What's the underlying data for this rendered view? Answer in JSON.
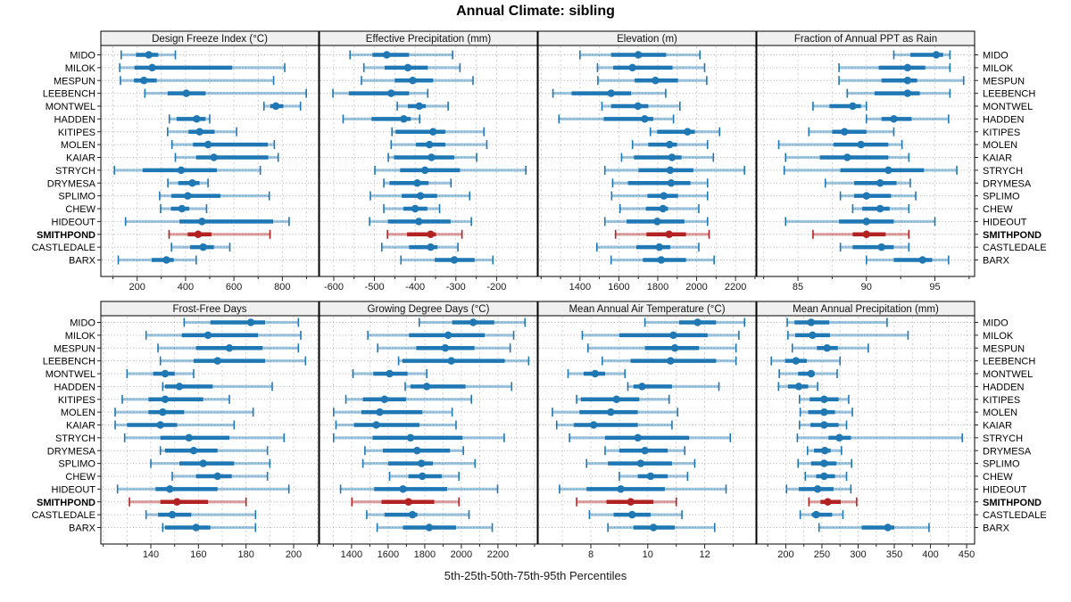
{
  "title": "Annual Climate: sibling",
  "footer": "5th-25th-50th-75th-95th Percentiles",
  "highlight_site": "SMITHPOND",
  "colors": {
    "series": "#1f77b4",
    "highlight": "#b22222",
    "strip_bg": "#f0f0f0",
    "panel_border": "#000000",
    "grid": "#d2d2d2",
    "row_line": "#b0b0b0",
    "tick": "#222222",
    "text": "#000000"
  },
  "sites": [
    "MIDO",
    "MILOK",
    "MESPUN",
    "LEEBENCH",
    "MONTWEL",
    "HADDEN",
    "KITIPES",
    "MOLEN",
    "KAIAR",
    "STRYCH",
    "DRYMESA",
    "SPLIMO",
    "CHEW",
    "HIDEOUT",
    "SMITHPOND",
    "CASTLEDALE",
    "BARX"
  ],
  "chart_data": {
    "type": "dotplot",
    "subtype": "percentile-whisker",
    "percentiles": [
      5,
      25,
      50,
      75,
      95
    ],
    "layout": {
      "rows": 2,
      "cols": 4
    },
    "grid": true,
    "panels": [
      {
        "title": "Design Freeze Index (°C)",
        "row": 0,
        "col": 0,
        "xlim": [
          50,
          950
        ],
        "major_ticks": [
          200,
          400,
          600,
          800
        ],
        "minor_ticks": [
          100,
          200,
          300,
          400,
          500,
          600,
          700,
          800,
          900
        ],
        "values": [
          [
            134,
            195,
            248,
            287,
            358
          ],
          [
            128,
            189,
            262,
            593,
            810
          ],
          [
            131,
            187,
            228,
            281,
            764
          ],
          [
            232,
            326,
            403,
            483,
            899
          ],
          [
            724,
            750,
            773,
            804,
            875
          ],
          [
            333,
            363,
            446,
            483,
            500
          ],
          [
            326,
            412,
            458,
            520,
            611
          ],
          [
            344,
            431,
            493,
            740,
            767
          ],
          [
            358,
            444,
            517,
            742,
            783
          ],
          [
            106,
            223,
            382,
            529,
            709
          ],
          [
            327,
            370,
            428,
            458,
            493
          ],
          [
            293,
            342,
            409,
            544,
            746
          ],
          [
            297,
            340,
            385,
            415,
            487
          ],
          [
            152,
            375,
            468,
            762,
            828
          ],
          [
            332,
            409,
            452,
            507,
            749
          ],
          [
            342,
            419,
            473,
            517,
            583
          ],
          [
            122,
            260,
            321,
            351,
            444
          ]
        ]
      },
      {
        "title": "Effective Precipitation (mm)",
        "row": 0,
        "col": 1,
        "xlim": [
          -635,
          -100
        ],
        "major_ticks": [
          -600,
          -500,
          -400,
          -300,
          -200
        ],
        "minor_ticks": [
          -600,
          -550,
          -500,
          -450,
          -400,
          -350,
          -300,
          -250,
          -200,
          -150
        ],
        "values": [
          [
            -560,
            -505,
            -470,
            -415,
            -308
          ],
          [
            -526,
            -475,
            -418,
            -369,
            -290
          ],
          [
            -532,
            -450,
            -406,
            -356,
            -258
          ],
          [
            -602,
            -563,
            -459,
            -415,
            -369
          ],
          [
            -444,
            -418,
            -390,
            -374,
            -319
          ],
          [
            -577,
            -507,
            -428,
            -411,
            -389
          ],
          [
            -457,
            -448,
            -356,
            -326,
            -231
          ],
          [
            -459,
            -398,
            -365,
            -326,
            -224
          ],
          [
            -466,
            -452,
            -360,
            -304,
            -249
          ],
          [
            -499,
            -437,
            -376,
            -290,
            -128
          ],
          [
            -477,
            -463,
            -395,
            -367,
            -312
          ],
          [
            -510,
            -433,
            -387,
            -346,
            -266
          ],
          [
            -477,
            -429,
            -400,
            -370,
            -340
          ],
          [
            -512,
            -467,
            -391,
            -313,
            -262
          ],
          [
            -468,
            -420,
            -362,
            -349,
            -285
          ],
          [
            -482,
            -415,
            -362,
            -345,
            -295
          ],
          [
            -435,
            -352,
            -304,
            -254,
            -209
          ]
        ]
      },
      {
        "title": "Elevation (m)",
        "row": 0,
        "col": 2,
        "xlim": [
          1185,
          2305
        ],
        "major_ticks": [
          1400,
          1600,
          1800,
          2000,
          2200
        ],
        "minor_ticks": [
          1200,
          1300,
          1400,
          1500,
          1600,
          1700,
          1800,
          1900,
          2000,
          2100,
          2200,
          2300
        ],
        "values": [
          [
            1400,
            1560,
            1700,
            1843,
            2017
          ],
          [
            1490,
            1571,
            1670,
            1876,
            2041
          ],
          [
            1492,
            1681,
            1788,
            1904,
            2052
          ],
          [
            1261,
            1357,
            1560,
            1663,
            1841
          ],
          [
            1513,
            1560,
            1698,
            1751,
            1914
          ],
          [
            1292,
            1522,
            1733,
            1777,
            1881
          ],
          [
            1762,
            1797,
            1953,
            1991,
            2118
          ],
          [
            1670,
            1751,
            1861,
            1899,
            2056
          ],
          [
            1614,
            1678,
            1873,
            1922,
            2086
          ],
          [
            1528,
            1701,
            1864,
            1983,
            2246
          ],
          [
            1568,
            1647,
            1869,
            1968,
            2056
          ],
          [
            1563,
            1747,
            1831,
            1904,
            2056
          ],
          [
            1606,
            1739,
            1827,
            1853,
            2011
          ],
          [
            1528,
            1640,
            1797,
            1937,
            2056
          ],
          [
            1583,
            1742,
            1858,
            1945,
            2064
          ],
          [
            1487,
            1690,
            1808,
            1864,
            2011
          ],
          [
            1560,
            1724,
            1818,
            1945,
            2090
          ]
        ]
      },
      {
        "title": "Fraction of Annual PPT as Rain",
        "row": 0,
        "col": 3,
        "xlim": [
          82,
          97.9
        ],
        "major_ticks": [
          85,
          90,
          95
        ],
        "minor_ticks": [
          82.5,
          85,
          87.5,
          90,
          92.5,
          95,
          97.5
        ],
        "values": [
          [
            92,
            93.2,
            95.1,
            95.6,
            96.1
          ],
          [
            88,
            90.9,
            93,
            94.3,
            96.1
          ],
          [
            88,
            91.1,
            93,
            93.7,
            97.1
          ],
          [
            88.6,
            90.6,
            93,
            93.9,
            96.1
          ],
          [
            86.1,
            87.3,
            89,
            89.6,
            90
          ],
          [
            90,
            91.1,
            92,
            93.3,
            96
          ],
          [
            85.8,
            87.5,
            88.4,
            90,
            92
          ],
          [
            83.6,
            87.6,
            89.6,
            91.6,
            92.6
          ],
          [
            84.1,
            86.6,
            88.6,
            91.6,
            93.1
          ],
          [
            84,
            88.1,
            91.6,
            94.2,
            96.6
          ],
          [
            87,
            89.1,
            91,
            92.2,
            93.2
          ],
          [
            88.1,
            89.1,
            90,
            91.8,
            93.6
          ],
          [
            89,
            89.7,
            91,
            91.7,
            93.1
          ],
          [
            84.1,
            88,
            90,
            92,
            95
          ],
          [
            86.1,
            89,
            90,
            91.4,
            93.1
          ],
          [
            88.1,
            89,
            91.1,
            92,
            93.1
          ],
          [
            90,
            92,
            94.1,
            94.8,
            96
          ]
        ]
      },
      {
        "title": "Frost-Free Days",
        "row": 1,
        "col": 0,
        "xlim": [
          119,
          210.5
        ],
        "major_ticks": [
          140,
          160,
          180,
          200
        ],
        "minor_ticks": [
          120,
          130,
          140,
          150,
          160,
          170,
          180,
          190,
          200,
          210
        ],
        "values": [
          [
            154,
            165,
            182,
            188,
            202
          ],
          [
            138,
            153,
            164,
            185,
            203
          ],
          [
            143,
            159,
            173,
            187,
            202
          ],
          [
            144,
            158,
            168,
            188,
            205
          ],
          [
            130,
            141,
            146,
            150,
            158
          ],
          [
            145,
            146,
            152,
            166,
            191
          ],
          [
            128,
            139,
            146,
            162,
            173
          ],
          [
            125,
            139,
            145,
            154,
            183
          ],
          [
            125,
            130,
            144,
            151,
            175
          ],
          [
            129,
            144,
            156,
            173,
            196
          ],
          [
            144,
            146,
            158,
            168,
            189
          ],
          [
            140,
            152,
            162,
            175,
            190
          ],
          [
            149,
            159,
            168,
            174,
            189
          ],
          [
            126,
            142,
            148,
            168,
            198
          ],
          [
            131,
            144,
            151,
            164,
            180
          ],
          [
            138,
            143,
            149,
            157,
            184
          ],
          [
            145,
            146,
            159,
            165,
            184
          ]
        ]
      },
      {
        "title": "Growing Degree Days (°C)",
        "row": 1,
        "col": 1,
        "xlim": [
          1225,
          2415
        ],
        "major_ticks": [
          1400,
          1600,
          1800,
          2000,
          2200
        ],
        "minor_ticks": [
          1300,
          1400,
          1500,
          1600,
          1700,
          1800,
          1900,
          2000,
          2100,
          2200,
          2300,
          2400
        ],
        "values": [
          [
            1770,
            1950,
            2065,
            2180,
            2348
          ],
          [
            1489,
            1714,
            1928,
            2128,
            2286
          ],
          [
            1543,
            1754,
            1912,
            2072,
            2267
          ],
          [
            1657,
            1678,
            1945,
            2237,
            2368
          ],
          [
            1408,
            1519,
            1608,
            1706,
            1811
          ],
          [
            1693,
            1722,
            1811,
            2023,
            2275
          ],
          [
            1369,
            1462,
            1580,
            1698,
            2055
          ],
          [
            1302,
            1454,
            1554,
            1787,
            1950
          ],
          [
            1315,
            1413,
            1535,
            1771,
            1971
          ],
          [
            1302,
            1515,
            1722,
            2007,
            2234
          ],
          [
            1473,
            1571,
            1758,
            1938,
            2011
          ],
          [
            1462,
            1600,
            1782,
            1844,
            2075
          ],
          [
            1608,
            1711,
            1787,
            1893,
            1987
          ],
          [
            1340,
            1524,
            1681,
            1922,
            2198
          ],
          [
            1402,
            1564,
            1711,
            1852,
            1987
          ],
          [
            1483,
            1580,
            1733,
            1759,
            2042
          ],
          [
            1540,
            1681,
            1824,
            1971,
            2169
          ]
        ]
      },
      {
        "title": "Mean Annual Air Temperature (°C)",
        "row": 1,
        "col": 2,
        "xlim": [
          6.15,
          13.8
        ],
        "major_ticks": [
          8,
          10,
          12
        ],
        "minor_ticks": [
          7,
          8,
          9,
          10,
          11,
          12,
          13
        ],
        "values": [
          [
            9.9,
            11.1,
            11.75,
            12.4,
            13.4
          ],
          [
            7.7,
            9.0,
            10.9,
            12.1,
            13.2
          ],
          [
            7.9,
            9.9,
            10.95,
            11.8,
            13.1
          ],
          [
            8.4,
            9.4,
            10.8,
            12.4,
            13.1
          ],
          [
            7.2,
            7.75,
            8.15,
            8.5,
            9.2
          ],
          [
            9.3,
            9.5,
            9.8,
            10.85,
            12.5
          ],
          [
            7.5,
            7.65,
            8.9,
            9.7,
            10.75
          ],
          [
            6.65,
            7.6,
            8.7,
            9.65,
            11.05
          ],
          [
            6.8,
            7.4,
            8.1,
            9.65,
            10.85
          ],
          [
            7.25,
            8.5,
            9.65,
            11.45,
            12.9
          ],
          [
            8.5,
            9.0,
            9.9,
            10.7,
            11.3
          ],
          [
            7.85,
            8.6,
            9.75,
            10.85,
            11.65
          ],
          [
            9.0,
            9.65,
            10.1,
            10.7,
            11.4
          ],
          [
            6.9,
            7.85,
            9.05,
            10.6,
            12.75
          ],
          [
            7.5,
            8.55,
            9.4,
            10.2,
            11.0
          ],
          [
            7.95,
            8.8,
            9.45,
            10.1,
            11.2
          ],
          [
            8.6,
            9.5,
            10.2,
            10.95,
            12.35
          ]
        ]
      },
      {
        "title": "Mean Annual Precipitation (mm)",
        "row": 1,
        "col": 3,
        "xlim": [
          160,
          461
        ],
        "major_ticks": [
          200,
          250,
          300,
          350,
          400,
          450
        ],
        "minor_ticks": [
          175,
          200,
          225,
          250,
          275,
          300,
          325,
          350,
          375,
          400,
          425,
          450
        ],
        "values": [
          [
            202,
            212,
            235,
            260,
            340
          ],
          [
            203,
            213,
            237,
            261,
            369
          ],
          [
            209,
            243,
            257,
            272,
            314
          ],
          [
            180,
            199,
            214,
            229,
            275
          ],
          [
            191,
            217,
            235,
            240,
            271
          ],
          [
            190,
            203,
            218,
            231,
            244
          ],
          [
            219,
            233,
            253,
            273,
            287
          ],
          [
            220,
            231,
            253,
            268,
            292
          ],
          [
            219,
            234,
            253,
            273,
            284
          ],
          [
            216,
            259,
            274,
            290,
            444
          ],
          [
            230,
            239,
            254,
            262,
            277
          ],
          [
            217,
            235,
            253,
            270,
            291
          ],
          [
            227,
            242,
            253,
            268,
            284
          ],
          [
            201,
            218,
            244,
            266,
            290
          ],
          [
            232,
            248,
            258,
            276,
            298
          ],
          [
            220,
            236,
            242,
            264,
            279
          ],
          [
            246,
            305,
            341,
            350,
            398
          ]
        ]
      }
    ]
  }
}
